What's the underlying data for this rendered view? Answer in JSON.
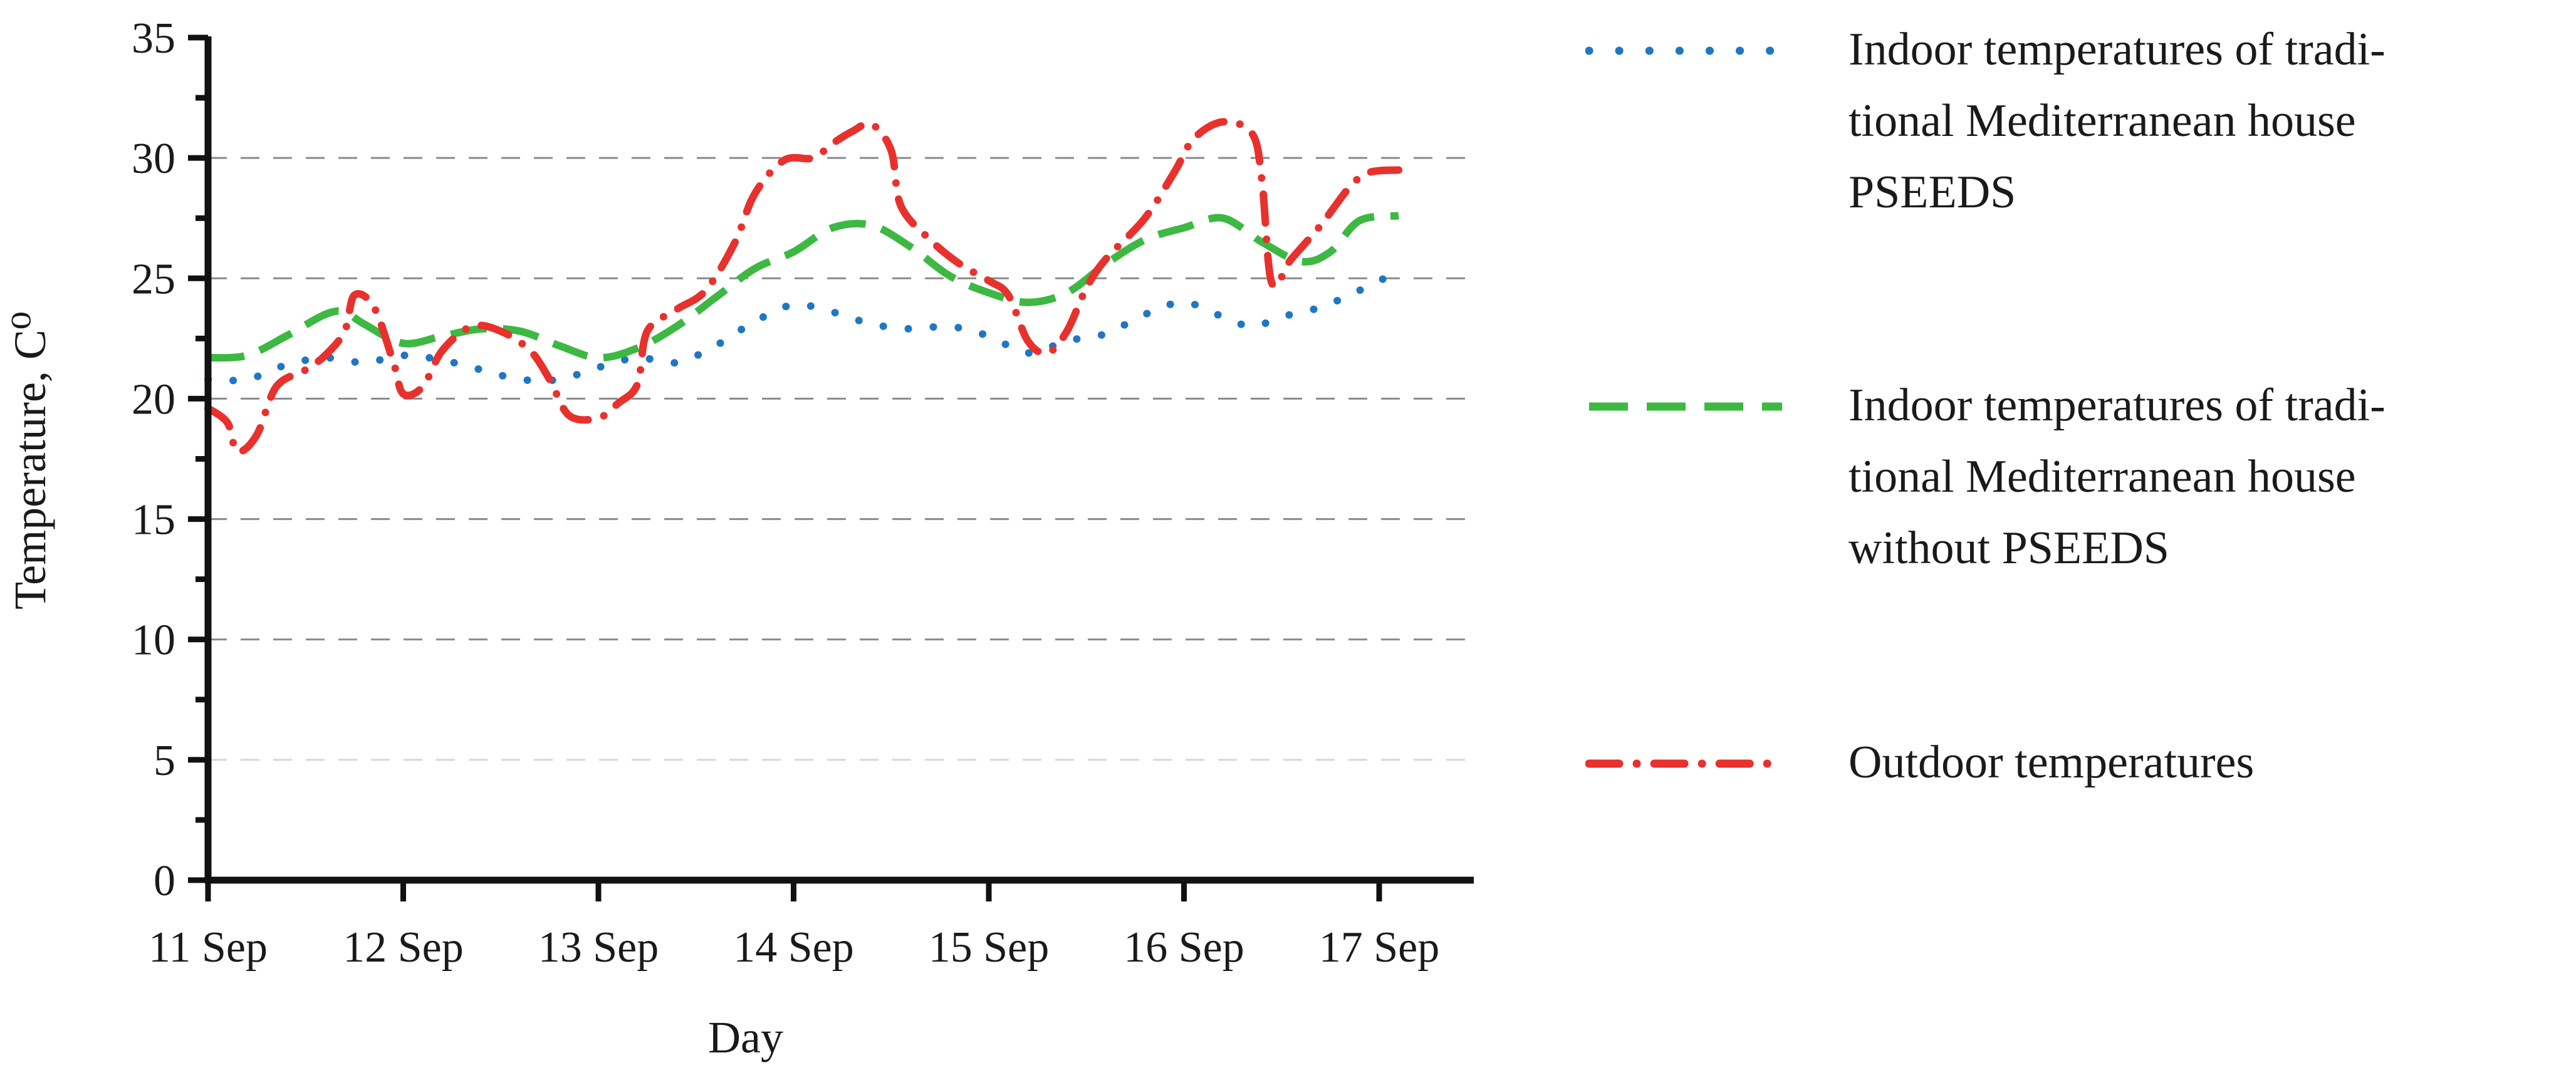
{
  "chart_data": {
    "type": "line",
    "xlabel": "Day",
    "ylabel": "Temperature, C⁰",
    "ylim": [
      0,
      35
    ],
    "yticks": [
      0,
      5,
      10,
      15,
      20,
      25,
      30,
      35
    ],
    "xlim": [
      0,
      7.0
    ],
    "xticks": [
      {
        "x": 0,
        "label": "11 Sep"
      },
      {
        "x": 1,
        "label": "12 Sep"
      },
      {
        "x": 2,
        "label": "13 Sep"
      },
      {
        "x": 3,
        "label": "14 Sep"
      },
      {
        "x": 4,
        "label": "15 Sep"
      },
      {
        "x": 5,
        "label": "16 Sep"
      },
      {
        "x": 6,
        "label": "17 Sep"
      }
    ],
    "grid": "horizontal dashed",
    "legend_position": "right",
    "series": [
      {
        "name": "Indoor temperatures of traditional Mediterranean house PSEEDS",
        "color": "#1f77c4",
        "style": "dotted",
        "points": [
          [
            0,
            20.8
          ],
          [
            0.2,
            20.8
          ],
          [
            0.4,
            21.4
          ],
          [
            0.6,
            21.7
          ],
          [
            0.8,
            21.5
          ],
          [
            1.0,
            21.8
          ],
          [
            1.2,
            21.6
          ],
          [
            1.4,
            21.2
          ],
          [
            1.6,
            20.8
          ],
          [
            1.8,
            20.8
          ],
          [
            2.0,
            21.3
          ],
          [
            2.2,
            21.7
          ],
          [
            2.4,
            21.5
          ],
          [
            2.6,
            22.2
          ],
          [
            2.8,
            23.2
          ],
          [
            3.0,
            23.9
          ],
          [
            3.2,
            23.6
          ],
          [
            3.4,
            23.1
          ],
          [
            3.6,
            22.9
          ],
          [
            3.8,
            23.0
          ],
          [
            4.0,
            22.6
          ],
          [
            4.2,
            21.9
          ],
          [
            4.4,
            22.4
          ],
          [
            4.6,
            22.7
          ],
          [
            4.8,
            23.5
          ],
          [
            5.0,
            24.0
          ],
          [
            5.2,
            23.4
          ],
          [
            5.35,
            23.0
          ],
          [
            5.5,
            23.4
          ],
          [
            5.7,
            23.8
          ],
          [
            5.9,
            24.5
          ],
          [
            6.1,
            25.3
          ]
        ]
      },
      {
        "name": "Indoor temperatures of traditional Mediterranean house without PSEEDS",
        "color": "#3db843",
        "style": "dashed",
        "points": [
          [
            0,
            21.7
          ],
          [
            0.2,
            21.8
          ],
          [
            0.4,
            22.6
          ],
          [
            0.6,
            23.5
          ],
          [
            0.7,
            23.6
          ],
          [
            0.8,
            23.1
          ],
          [
            1.0,
            22.3
          ],
          [
            1.2,
            22.6
          ],
          [
            1.4,
            22.9
          ],
          [
            1.6,
            22.8
          ],
          [
            1.8,
            22.2
          ],
          [
            2.0,
            21.7
          ],
          [
            2.2,
            22.1
          ],
          [
            2.4,
            23.0
          ],
          [
            2.6,
            24.2
          ],
          [
            2.8,
            25.4
          ],
          [
            3.0,
            26.1
          ],
          [
            3.2,
            27.1
          ],
          [
            3.4,
            27.2
          ],
          [
            3.6,
            26.3
          ],
          [
            3.8,
            25.1
          ],
          [
            4.0,
            24.4
          ],
          [
            4.2,
            24.0
          ],
          [
            4.4,
            24.4
          ],
          [
            4.6,
            25.6
          ],
          [
            4.8,
            26.6
          ],
          [
            5.0,
            27.1
          ],
          [
            5.2,
            27.5
          ],
          [
            5.4,
            26.5
          ],
          [
            5.6,
            25.7
          ],
          [
            5.75,
            26.1
          ],
          [
            5.9,
            27.4
          ],
          [
            6.1,
            27.6
          ]
        ]
      },
      {
        "name": "Outdoor temperatures",
        "color": "#e8312d",
        "style": "dash-dot",
        "points": [
          [
            0,
            19.6
          ],
          [
            0.1,
            19.0
          ],
          [
            0.15,
            17.8
          ],
          [
            0.25,
            18.5
          ],
          [
            0.35,
            20.5
          ],
          [
            0.5,
            21.2
          ],
          [
            0.6,
            21.8
          ],
          [
            0.7,
            22.8
          ],
          [
            0.75,
            24.3
          ],
          [
            0.85,
            23.8
          ],
          [
            0.95,
            21.5
          ],
          [
            1.0,
            20.2
          ],
          [
            1.1,
            20.5
          ],
          [
            1.2,
            22.0
          ],
          [
            1.35,
            23.0
          ],
          [
            1.5,
            22.8
          ],
          [
            1.65,
            22.0
          ],
          [
            1.75,
            20.8
          ],
          [
            1.85,
            19.3
          ],
          [
            2.0,
            19.2
          ],
          [
            2.1,
            19.8
          ],
          [
            2.2,
            20.6
          ],
          [
            2.25,
            22.8
          ],
          [
            2.4,
            23.7
          ],
          [
            2.55,
            24.5
          ],
          [
            2.7,
            26.5
          ],
          [
            2.8,
            28.5
          ],
          [
            2.95,
            29.9
          ],
          [
            3.1,
            30.0
          ],
          [
            3.2,
            30.6
          ],
          [
            3.3,
            31.1
          ],
          [
            3.4,
            31.4
          ],
          [
            3.5,
            30.3
          ],
          [
            3.55,
            28.0
          ],
          [
            3.7,
            26.6
          ],
          [
            3.85,
            25.6
          ],
          [
            4.0,
            24.9
          ],
          [
            4.1,
            24.3
          ],
          [
            4.2,
            22.4
          ],
          [
            4.3,
            21.9
          ],
          [
            4.4,
            22.8
          ],
          [
            4.5,
            24.6
          ],
          [
            4.6,
            25.8
          ],
          [
            4.8,
            27.5
          ],
          [
            4.95,
            29.4
          ],
          [
            5.05,
            30.8
          ],
          [
            5.2,
            31.5
          ],
          [
            5.35,
            31.0
          ],
          [
            5.4,
            29.0
          ],
          [
            5.45,
            24.8
          ],
          [
            5.55,
            25.8
          ],
          [
            5.7,
            27.2
          ],
          [
            5.85,
            28.8
          ],
          [
            5.95,
            29.4
          ],
          [
            6.1,
            29.5
          ]
        ]
      }
    ]
  },
  "legend": {
    "items": [
      {
        "label": "Indoor temperatures of traditional Mediterranean house PSEEDS",
        "line1": "Indoor temperatures of tradi-",
        "line2": "tional Mediterranean house",
        "line3": "PSEEDS"
      },
      {
        "label": "Indoor temperatures of traditional Mediterranean house without PSEEDS",
        "line1": "Indoor temperatures of tradi-",
        "line2": "tional Mediterranean house",
        "line3": "without PSEEDS"
      },
      {
        "label": "Outdoor temperatures",
        "line1": "Outdoor temperatures"
      }
    ]
  }
}
